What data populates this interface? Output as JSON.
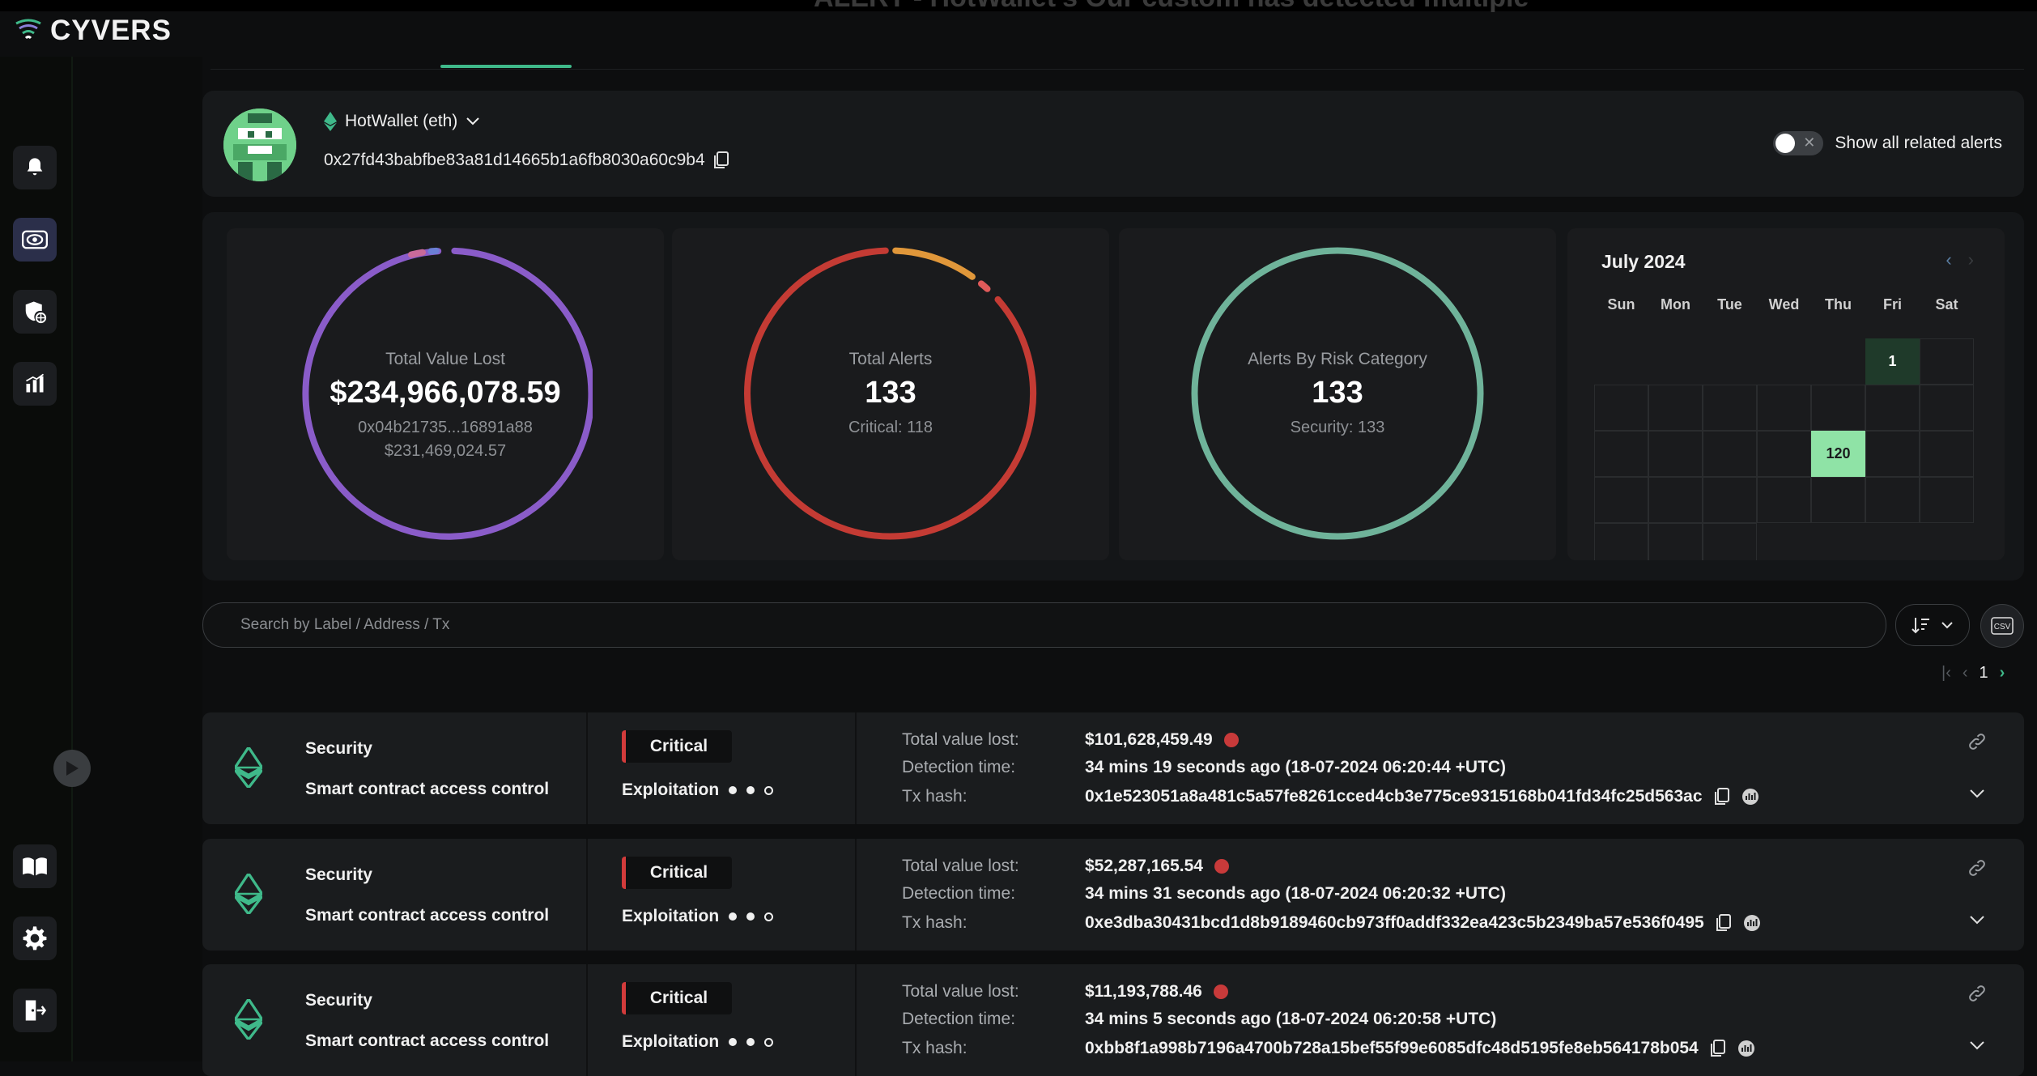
{
  "background_title": "ALERT - HotWallet's Our custom has detected multiple",
  "app": {
    "logo_text": "CYVERS"
  },
  "sidebar": {
    "items": [
      {
        "name": "alerts",
        "icon": "bell-icon"
      },
      {
        "name": "watch",
        "icon": "eye-icon"
      },
      {
        "name": "policy",
        "icon": "shield-icon"
      },
      {
        "name": "reports",
        "icon": "chart-icon"
      },
      {
        "name": "docs",
        "icon": "book-icon"
      },
      {
        "name": "settings",
        "icon": "gear-icon"
      },
      {
        "name": "logout",
        "icon": "logout-icon"
      }
    ]
  },
  "wallet": {
    "name": "HotWallet (eth)",
    "address": "0x27fd43babfbe83a81d14665b1a6fb8030a60c9b4",
    "toggle_label": "Show all related alerts"
  },
  "stats": {
    "value_lost": {
      "label": "Total Value Lost",
      "value": "$234,966,078.59",
      "sub1": "0x04b21735...16891a88",
      "sub2": "$231,469,024.57"
    },
    "alerts": {
      "label": "Total Alerts",
      "value": "133",
      "sub": "Critical: 118"
    },
    "risk": {
      "label": "Alerts By Risk Category",
      "value": "133",
      "sub": "Security: 133"
    }
  },
  "calendar": {
    "title": "July 2024",
    "days": [
      "Sun",
      "Mon",
      "Tue",
      "Wed",
      "Thu",
      "Fri",
      "Sat"
    ],
    "marks": [
      {
        "label": "1",
        "color": "#1f3a2a"
      },
      {
        "label": "120",
        "color": "#8fe3a6"
      }
    ]
  },
  "search": {
    "placeholder": "Search by Label / Address / Tx"
  },
  "toolbar": {
    "csv_label": "CSV"
  },
  "pagination": {
    "page": "1"
  },
  "alert_labels": {
    "value_lost": "Total value lost:",
    "detection": "Detection time:",
    "tx": "Tx hash:"
  },
  "alerts": [
    {
      "category": "Security",
      "type": "Smart contract access control",
      "severity": "Critical",
      "stage": "Exploitation",
      "value_lost": "$101,628,459.49",
      "detection_time": "34 mins 19 seconds ago (18-07-2024 06:20:44 +UTC)",
      "tx_hash": "0x1e523051a8a481c5a57fe8261cced4cb3e775ce9315168b041fd34fc25d563ac"
    },
    {
      "category": "Security",
      "type": "Smart contract access control",
      "severity": "Critical",
      "stage": "Exploitation",
      "value_lost": "$52,287,165.54",
      "detection_time": "34 mins 31 seconds ago (18-07-2024 06:20:32 +UTC)",
      "tx_hash": "0xe3dba30431bcd1d8b9189460cb973ff0addf332ea423c5b2349ba57e536f0495"
    },
    {
      "category": "Security",
      "type": "Smart contract access control",
      "severity": "Critical",
      "stage": "Exploitation",
      "value_lost": "$11,193,788.46",
      "detection_time": "34 mins 5 seconds ago (18-07-2024 06:20:58 +UTC)",
      "tx_hash": "0xbb8f1a998b7196a4700b728a15bef55f99e6085dfc48d5195fe8eb564178b054"
    }
  ],
  "colors": {
    "accent_green": "#3fb98a",
    "ring_value_lost": "#8a5cc9",
    "ring_alerts": "#c43b34",
    "ring_risk": "#6fb39a",
    "critical": "#d23b3b"
  }
}
